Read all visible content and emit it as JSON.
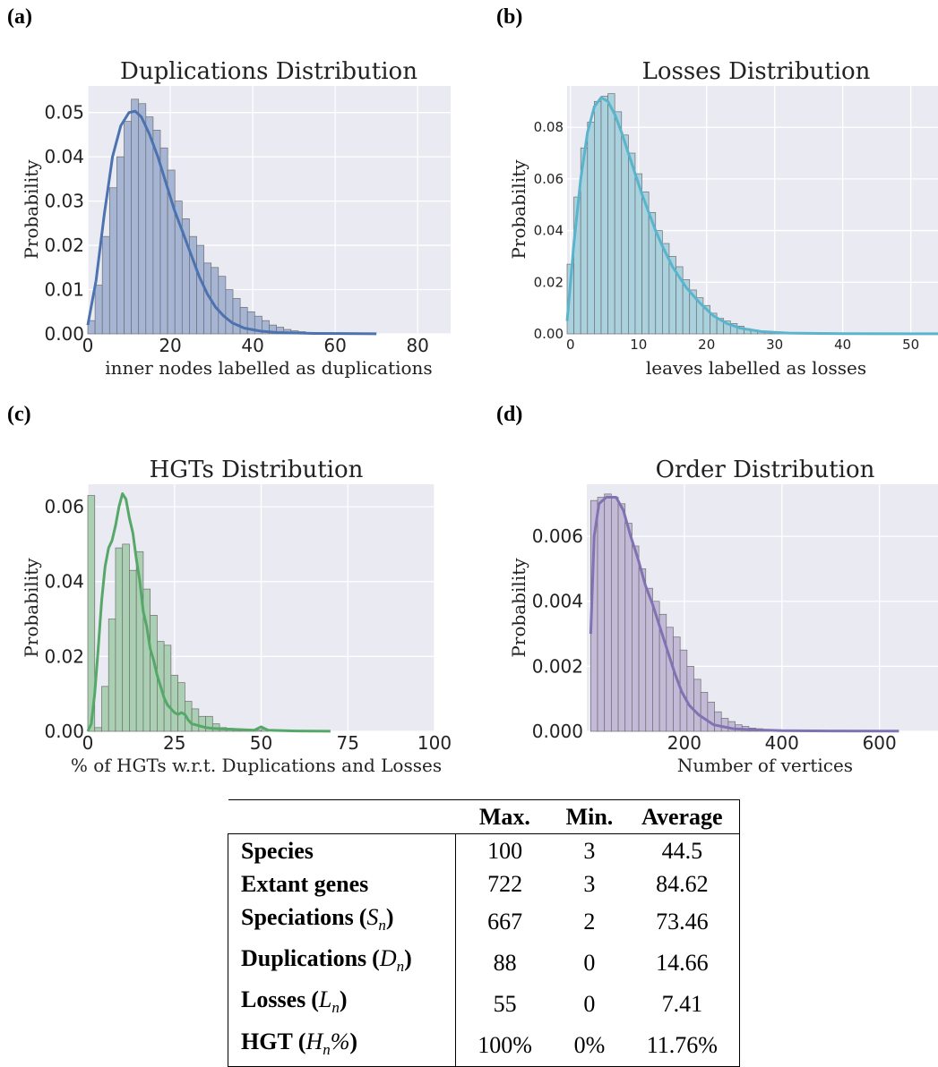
{
  "panels": [
    {
      "letter": "(a)"
    },
    {
      "letter": "(b)"
    },
    {
      "letter": "(c)"
    },
    {
      "letter": "(d)"
    }
  ],
  "chart_data": [
    {
      "type": "bar",
      "title": "Duplications Distribution",
      "xlabel": "inner nodes labelled as duplications",
      "ylabel": "Probability",
      "xlim": [
        0,
        88
      ],
      "ylim": [
        0,
        0.056
      ],
      "xticks": [
        0,
        20,
        40,
        60,
        80
      ],
      "yticks": [
        0,
        0.01,
        0.02,
        0.03,
        0.04,
        0.05
      ],
      "xtick_labels": [
        "0",
        "20",
        "40",
        "60",
        "80"
      ],
      "ytick_labels": [
        "0.00",
        "0.01",
        "0.02",
        "0.03",
        "0.04",
        "0.05"
      ],
      "bin_width": 1.76,
      "values": [
        0.003,
        0.011,
        0.022,
        0.033,
        0.04,
        0.048,
        0.053,
        0.052,
        0.049,
        0.046,
        0.042,
        0.037,
        0.03,
        0.026,
        0.022,
        0.02,
        0.016,
        0.015,
        0.013,
        0.01,
        0.008,
        0.006,
        0.005,
        0.004,
        0.003,
        0.002,
        0.0015,
        0.001,
        0.0007,
        0.0005,
        0.0003,
        0.0002,
        0.0002,
        0.0001,
        0.0001
      ],
      "kde": [
        [
          0,
          0.002
        ],
        [
          2,
          0.012
        ],
        [
          4,
          0.027
        ],
        [
          6,
          0.04
        ],
        [
          8,
          0.047
        ],
        [
          10,
          0.05
        ],
        [
          11.5,
          0.0503
        ],
        [
          13,
          0.049
        ],
        [
          15,
          0.045
        ],
        [
          17,
          0.04
        ],
        [
          19,
          0.034
        ],
        [
          21,
          0.028
        ],
        [
          23,
          0.023
        ],
        [
          25,
          0.018
        ],
        [
          27,
          0.013
        ],
        [
          29,
          0.009
        ],
        [
          31,
          0.006
        ],
        [
          33,
          0.004
        ],
        [
          35,
          0.0025
        ],
        [
          38,
          0.0013
        ],
        [
          42,
          0.0006
        ],
        [
          46,
          0.0003
        ],
        [
          55,
          0.0001
        ],
        [
          70,
          2e-05
        ]
      ],
      "color": "#4c72b0",
      "bar_color": "#a6b5d3"
    },
    {
      "type": "bar",
      "title": "Losses Distribution",
      "xlabel": "leaves labelled as losses",
      "ylabel": "Probability",
      "xlim": [
        -0.5,
        54
      ],
      "ylim": [
        0,
        0.096
      ],
      "xticks": [
        0,
        10,
        20,
        30,
        40,
        50
      ],
      "yticks": [
        0,
        0.02,
        0.04,
        0.06,
        0.08
      ],
      "xtick_labels": [
        "0",
        "10",
        "20",
        "30",
        "40",
        "50"
      ],
      "ytick_labels": [
        "0.00",
        "0.02",
        "0.04",
        "0.06",
        "0.08"
      ],
      "bin_width": 1.0,
      "values": [
        0.027,
        0.053,
        0.072,
        0.082,
        0.09,
        0.092,
        0.093,
        0.086,
        0.077,
        0.07,
        0.062,
        0.055,
        0.047,
        0.04,
        0.035,
        0.03,
        0.026,
        0.021,
        0.017,
        0.014,
        0.011,
        0.008,
        0.006,
        0.005,
        0.004,
        0.003,
        0.002,
        0.0015,
        0.001,
        0.0008,
        0.0006,
        0.0004,
        0.0003,
        0.0002,
        0.0001
      ],
      "kde": [
        [
          -0.5,
          0.005
        ],
        [
          0.5,
          0.035
        ],
        [
          1.5,
          0.06
        ],
        [
          2.5,
          0.078
        ],
        [
          3.5,
          0.088
        ],
        [
          4.5,
          0.0915
        ],
        [
          5.5,
          0.09
        ],
        [
          6.5,
          0.085
        ],
        [
          7.5,
          0.078
        ],
        [
          8.5,
          0.07
        ],
        [
          9.5,
          0.062
        ],
        [
          10.5,
          0.054
        ],
        [
          11.5,
          0.047
        ],
        [
          12.5,
          0.04
        ],
        [
          13.5,
          0.034
        ],
        [
          15,
          0.026
        ],
        [
          17,
          0.018
        ],
        [
          19,
          0.012
        ],
        [
          21,
          0.007
        ],
        [
          23,
          0.004
        ],
        [
          25,
          0.0022
        ],
        [
          28,
          0.0009
        ],
        [
          32,
          0.0003
        ],
        [
          40,
          8e-05
        ],
        [
          54,
          2e-05
        ]
      ],
      "color": "#5ab4cc",
      "bar_color": "#aad1de"
    },
    {
      "type": "bar",
      "title": "HGTs Distribution",
      "xlabel": "% of HGTs w.r.t. Duplications and Losses",
      "ylabel": "Probability",
      "xlim": [
        0,
        100
      ],
      "ylim": [
        0,
        0.066
      ],
      "xticks": [
        0,
        25,
        50,
        75,
        100
      ],
      "yticks": [
        0,
        0.02,
        0.04,
        0.06
      ],
      "xtick_labels": [
        "0",
        "25",
        "50",
        "75",
        "100"
      ],
      "ytick_labels": [
        "0.00",
        "0.02",
        "0.04",
        "0.06"
      ],
      "bin_width": 2.0,
      "values": [
        0.063,
        0.001,
        0.012,
        0.03,
        0.049,
        0.05,
        0.043,
        0.048,
        0.038,
        0.031,
        0.024,
        0.023,
        0.015,
        0.013,
        0.008,
        0.006,
        0.004,
        0.004,
        0.002,
        0.001,
        0.0008,
        0.0006,
        0.0004,
        0.0003,
        0.0003,
        0.0005
      ],
      "kde": [
        [
          0,
          0.0
        ],
        [
          1,
          0.002
        ],
        [
          2,
          0.01
        ],
        [
          3,
          0.022
        ],
        [
          4,
          0.035
        ],
        [
          5,
          0.044
        ],
        [
          6,
          0.049
        ],
        [
          7,
          0.051
        ],
        [
          8,
          0.055
        ],
        [
          9,
          0.06
        ],
        [
          10,
          0.0635
        ],
        [
          11,
          0.062
        ],
        [
          12,
          0.057
        ],
        [
          13,
          0.053
        ],
        [
          14,
          0.046
        ],
        [
          15,
          0.04
        ],
        [
          16,
          0.032
        ],
        [
          17,
          0.028
        ],
        [
          18,
          0.022
        ],
        [
          19,
          0.019
        ],
        [
          20,
          0.015
        ],
        [
          21,
          0.012
        ],
        [
          22,
          0.009
        ],
        [
          23,
          0.007
        ],
        [
          24,
          0.006
        ],
        [
          25,
          0.005
        ],
        [
          26,
          0.0045
        ],
        [
          27,
          0.005
        ],
        [
          28,
          0.0045
        ],
        [
          29,
          0.003
        ],
        [
          30,
          0.002
        ],
        [
          32,
          0.0015
        ],
        [
          34,
          0.001
        ],
        [
          36,
          0.0008
        ],
        [
          40,
          0.0006
        ],
        [
          45,
          0.0004
        ],
        [
          48,
          0.0003
        ],
        [
          50,
          0.0012
        ],
        [
          52,
          0.0003
        ],
        [
          60,
          0.0001
        ],
        [
          70,
          2e-05
        ]
      ],
      "color": "#55a868",
      "bar_color": "#abcfb3"
    },
    {
      "type": "bar",
      "title": "Order Distribution",
      "xlabel": "Number of vertices",
      "ylabel": "Probability",
      "xlim": [
        0,
        720
      ],
      "ylim": [
        0,
        0.0076
      ],
      "xticks": [
        200,
        400,
        600
      ],
      "yticks": [
        0,
        0.002,
        0.004,
        0.006
      ],
      "xtick_labels": [
        "200",
        "400",
        "600"
      ],
      "ytick_labels": [
        "0.000",
        "0.002",
        "0.004",
        "0.006"
      ],
      "bin_start": 8,
      "bin_width": 14.1,
      "values": [
        0.0071,
        0.0072,
        0.0073,
        0.0072,
        0.007,
        0.0064,
        0.0057,
        0.005,
        0.0044,
        0.004,
        0.0036,
        0.0032,
        0.0029,
        0.0025,
        0.002,
        0.0016,
        0.0012,
        0.0009,
        0.0006,
        0.0004,
        0.0003,
        0.0002,
        0.00015,
        0.0001,
        8e-05,
        5e-05
      ],
      "kde": [
        [
          8,
          0.003
        ],
        [
          15,
          0.006
        ],
        [
          25,
          0.007
        ],
        [
          40,
          0.0072
        ],
        [
          60,
          0.0072
        ],
        [
          75,
          0.0068
        ],
        [
          90,
          0.006
        ],
        [
          105,
          0.0053
        ],
        [
          120,
          0.0045
        ],
        [
          135,
          0.0039
        ],
        [
          150,
          0.0032
        ],
        [
          165,
          0.0025
        ],
        [
          180,
          0.0018
        ],
        [
          195,
          0.0012
        ],
        [
          210,
          0.0008
        ],
        [
          230,
          0.0005
        ],
        [
          260,
          0.0002
        ],
        [
          300,
          8e-05
        ],
        [
          340,
          5e-05
        ],
        [
          400,
          2e-05
        ],
        [
          500,
          1e-05
        ],
        [
          640,
          5e-06
        ]
      ],
      "color": "#8172b2",
      "bar_color": "#c2bad7"
    }
  ],
  "table": {
    "header": [
      "",
      "Max.",
      "Min.",
      "Average"
    ],
    "rows": [
      {
        "label": "Species",
        "sub": "",
        "max": "100",
        "min": "3",
        "avg": "44.5"
      },
      {
        "label": "Extant genes",
        "sub": "",
        "max": "722",
        "min": "3",
        "avg": "84.62"
      },
      {
        "label": "Speciations",
        "sub": "S",
        "max": "667",
        "min": "2",
        "avg": "73.46"
      },
      {
        "label": "Duplications",
        "sub": "D",
        "max": "88",
        "min": "0",
        "avg": "14.66"
      },
      {
        "label": "Losses",
        "sub": "L",
        "max": "55",
        "min": "0",
        "avg": "7.41"
      },
      {
        "label": "HGT",
        "sub": "H",
        "max": "100%",
        "min": "0%",
        "avg": "11.76%"
      }
    ]
  }
}
